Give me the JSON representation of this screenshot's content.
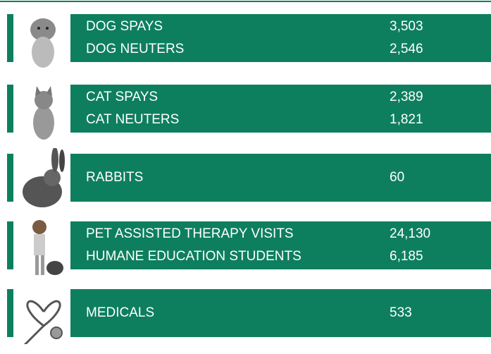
{
  "groups": [
    {
      "rows": [
        {
          "label": "DOG SPAYS",
          "value": "3,503"
        },
        {
          "label": "DOG NEUTERS",
          "value": "2,546"
        }
      ]
    },
    {
      "rows": [
        {
          "label": "CAT SPAYS",
          "value": "2,389"
        },
        {
          "label": "CAT NEUTERS",
          "value": "1,821"
        }
      ]
    },
    {
      "rows": [
        {
          "label": "RABBITS",
          "value": "60"
        }
      ]
    },
    {
      "rows": [
        {
          "label": "PET ASSISTED THERAPY VISITS",
          "value": "24,130"
        },
        {
          "label": "HUMANE EDUCATION STUDENTS",
          "value": "6,185"
        }
      ]
    },
    {
      "rows": [
        {
          "label": "MEDICALS",
          "value": "533"
        }
      ]
    }
  ]
}
